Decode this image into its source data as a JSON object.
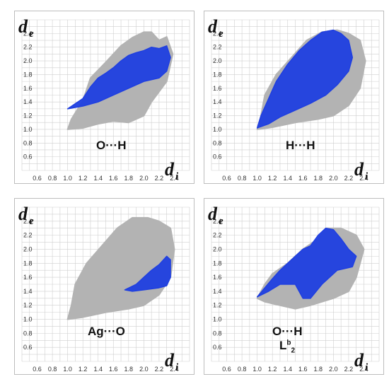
{
  "chart_data": [
    {
      "type": "scatter",
      "title": "",
      "xlabel": "d",
      "xlabel_sub": "i",
      "ylabel": "d",
      "ylabel_sub": "e",
      "xlim": [
        0.4,
        2.6
      ],
      "ylim": [
        0.4,
        2.6
      ],
      "xticks": [
        "0.6",
        "0.8",
        "1.0",
        "1.2",
        "1.4",
        "1.6",
        "1.8",
        "2.0",
        "2.2",
        "2.4"
      ],
      "yticks": [
        "0.6",
        "0.8",
        "1.0",
        "1.2",
        "1.4",
        "1.6",
        "1.8",
        "2.0",
        "2.2",
        "2.4"
      ],
      "grid": true,
      "contact": "O···H",
      "background_outline": [
        [
          1.0,
          1.0
        ],
        [
          1.05,
          1.15
        ],
        [
          1.2,
          1.42
        ],
        [
          1.3,
          1.75
        ],
        [
          1.5,
          1.98
        ],
        [
          1.7,
          2.22
        ],
        [
          1.85,
          2.34
        ],
        [
          2.0,
          2.42
        ],
        [
          2.1,
          2.42
        ],
        [
          2.2,
          2.3
        ],
        [
          2.3,
          2.35
        ],
        [
          2.38,
          2.1
        ],
        [
          2.3,
          1.7
        ],
        [
          2.1,
          1.4
        ],
        [
          2.0,
          1.2
        ],
        [
          1.8,
          1.1
        ],
        [
          1.6,
          1.12
        ],
        [
          1.4,
          1.08
        ],
        [
          1.2,
          1.02
        ]
      ],
      "series": [
        {
          "points": [
            [
              1.0,
              1.3
            ],
            [
              1.2,
              1.45
            ],
            [
              1.3,
              1.62
            ],
            [
              1.4,
              1.75
            ],
            [
              1.5,
              1.82
            ],
            [
              1.6,
              1.9
            ],
            [
              1.7,
              2.0
            ],
            [
              1.8,
              2.08
            ],
            [
              1.9,
              2.12
            ],
            [
              2.0,
              2.15
            ],
            [
              2.1,
              2.2
            ],
            [
              2.2,
              2.18
            ],
            [
              2.3,
              2.22
            ],
            [
              2.35,
              2.05
            ],
            [
              2.3,
              1.85
            ],
            [
              2.2,
              1.75
            ],
            [
              2.0,
              1.7
            ],
            [
              1.8,
              1.6
            ],
            [
              1.6,
              1.5
            ],
            [
              1.4,
              1.4
            ],
            [
              1.2,
              1.34
            ]
          ]
        }
      ]
    },
    {
      "type": "scatter",
      "title": "",
      "xlabel": "d",
      "xlabel_sub": "i",
      "ylabel": "d",
      "ylabel_sub": "e",
      "xlim": [
        0.4,
        2.6
      ],
      "ylim": [
        0.4,
        2.6
      ],
      "xticks": [
        "0.6",
        "0.8",
        "1.0",
        "1.2",
        "1.4",
        "1.6",
        "1.8",
        "2.0",
        "2.2",
        "2.4"
      ],
      "yticks": [
        "0.6",
        "0.8",
        "1.0",
        "1.2",
        "1.4",
        "1.6",
        "1.8",
        "2.0",
        "2.2",
        "2.4"
      ],
      "grid": true,
      "contact": "H···H",
      "background_outline": [
        [
          1.0,
          1.0
        ],
        [
          1.05,
          1.2
        ],
        [
          1.1,
          1.5
        ],
        [
          1.25,
          1.8
        ],
        [
          1.45,
          2.05
        ],
        [
          1.65,
          2.3
        ],
        [
          1.85,
          2.42
        ],
        [
          2.05,
          2.45
        ],
        [
          2.2,
          2.4
        ],
        [
          2.35,
          2.3
        ],
        [
          2.42,
          2.0
        ],
        [
          2.35,
          1.6
        ],
        [
          2.2,
          1.35
        ],
        [
          2.0,
          1.2
        ],
        [
          1.8,
          1.15
        ],
        [
          1.5,
          1.1
        ],
        [
          1.2,
          1.03
        ]
      ],
      "series": [
        {
          "points": [
            [
              1.0,
              1.02
            ],
            [
              1.05,
              1.2
            ],
            [
              1.15,
              1.45
            ],
            [
              1.25,
              1.7
            ],
            [
              1.4,
              1.95
            ],
            [
              1.55,
              2.15
            ],
            [
              1.7,
              2.3
            ],
            [
              1.85,
              2.42
            ],
            [
              2.0,
              2.45
            ],
            [
              2.1,
              2.4
            ],
            [
              2.2,
              2.3
            ],
            [
              2.25,
              2.05
            ],
            [
              2.2,
              1.85
            ],
            [
              2.05,
              1.65
            ],
            [
              1.9,
              1.5
            ],
            [
              1.7,
              1.38
            ],
            [
              1.5,
              1.28
            ],
            [
              1.3,
              1.18
            ],
            [
              1.15,
              1.08
            ]
          ]
        }
      ]
    },
    {
      "type": "scatter",
      "title": "",
      "xlabel": "d",
      "xlabel_sub": "i",
      "ylabel": "d",
      "ylabel_sub": "e",
      "xlim": [
        0.4,
        2.6
      ],
      "ylim": [
        0.4,
        2.6
      ],
      "xticks": [
        "0.6",
        "0.8",
        "1.0",
        "1.2",
        "1.4",
        "1.6",
        "1.8",
        "2.0",
        "2.2",
        "2.4"
      ],
      "yticks": [
        "0.6",
        "0.8",
        "1.0",
        "1.2",
        "1.4",
        "1.6",
        "1.8",
        "2.0",
        "2.2",
        "2.4"
      ],
      "grid": true,
      "contact": "Ag···O",
      "background_outline": [
        [
          1.0,
          1.0
        ],
        [
          1.05,
          1.2
        ],
        [
          1.1,
          1.5
        ],
        [
          1.25,
          1.8
        ],
        [
          1.45,
          2.05
        ],
        [
          1.65,
          2.3
        ],
        [
          1.85,
          2.45
        ],
        [
          2.05,
          2.45
        ],
        [
          2.2,
          2.4
        ],
        [
          2.35,
          2.3
        ],
        [
          2.4,
          2.0
        ],
        [
          2.35,
          1.6
        ],
        [
          2.2,
          1.35
        ],
        [
          2.0,
          1.2
        ],
        [
          1.8,
          1.15
        ],
        [
          1.5,
          1.1
        ],
        [
          1.2,
          1.03
        ]
      ],
      "series": [
        {
          "points": [
            [
              1.75,
              1.42
            ],
            [
              1.9,
              1.5
            ],
            [
              2.0,
              1.6
            ],
            [
              2.1,
              1.7
            ],
            [
              2.2,
              1.78
            ],
            [
              2.3,
              1.9
            ],
            [
              2.35,
              1.85
            ],
            [
              2.35,
              1.6
            ],
            [
              2.3,
              1.48
            ],
            [
              2.2,
              1.45
            ],
            [
              2.0,
              1.42
            ],
            [
              1.85,
              1.4
            ]
          ]
        }
      ]
    },
    {
      "type": "scatter",
      "title": "",
      "xlabel": "d",
      "xlabel_sub": "i",
      "ylabel": "d",
      "ylabel_sub": "e",
      "xlim": [
        0.4,
        2.6
      ],
      "ylim": [
        0.4,
        2.6
      ],
      "xticks": [
        "0.6",
        "0.8",
        "1.0",
        "1.2",
        "1.4",
        "1.6",
        "1.8",
        "2.0",
        "2.2",
        "2.4"
      ],
      "yticks": [
        "0.6",
        "0.8",
        "1.0",
        "1.2",
        "1.4",
        "1.6",
        "1.8",
        "2.0",
        "2.2",
        "2.4"
      ],
      "grid": true,
      "contact": "O···H",
      "contact_sub": {
        "base": "L",
        "sup": "b",
        "sub": "2"
      },
      "background_outline": [
        [
          1.0,
          1.3
        ],
        [
          1.1,
          1.5
        ],
        [
          1.2,
          1.65
        ],
        [
          1.4,
          1.8
        ],
        [
          1.6,
          2.0
        ],
        [
          1.8,
          2.15
        ],
        [
          1.9,
          2.3
        ],
        [
          2.1,
          2.3
        ],
        [
          2.3,
          2.2
        ],
        [
          2.4,
          2.0
        ],
        [
          2.3,
          1.6
        ],
        [
          2.2,
          1.4
        ],
        [
          2.0,
          1.3
        ],
        [
          1.7,
          1.2
        ],
        [
          1.5,
          1.15
        ],
        [
          1.3,
          1.2
        ],
        [
          1.1,
          1.25
        ]
      ],
      "series": [
        {
          "points": [
            [
              1.0,
              1.32
            ],
            [
              1.1,
              1.45
            ],
            [
              1.2,
              1.58
            ],
            [
              1.3,
              1.7
            ],
            [
              1.4,
              1.8
            ],
            [
              1.5,
              1.9
            ],
            [
              1.6,
              2.0
            ],
            [
              1.7,
              2.05
            ],
            [
              1.8,
              2.2
            ],
            [
              1.9,
              2.3
            ],
            [
              2.0,
              2.28
            ],
            [
              2.1,
              2.15
            ],
            [
              2.2,
              2.0
            ],
            [
              2.3,
              1.9
            ],
            [
              2.25,
              1.75
            ],
            [
              2.05,
              1.7
            ],
            [
              1.85,
              1.5
            ],
            [
              1.7,
              1.3
            ],
            [
              1.6,
              1.3
            ],
            [
              1.5,
              1.5
            ],
            [
              1.3,
              1.5
            ],
            [
              1.15,
              1.4
            ]
          ]
        }
      ]
    }
  ],
  "colors": {
    "background_points": "#b3b3b3",
    "fingerprint_points": "#1f3fe0",
    "fingerprint_highlight": "#36c7d6",
    "grid": "#cfcfcf",
    "frame": "#bdbdbd"
  }
}
